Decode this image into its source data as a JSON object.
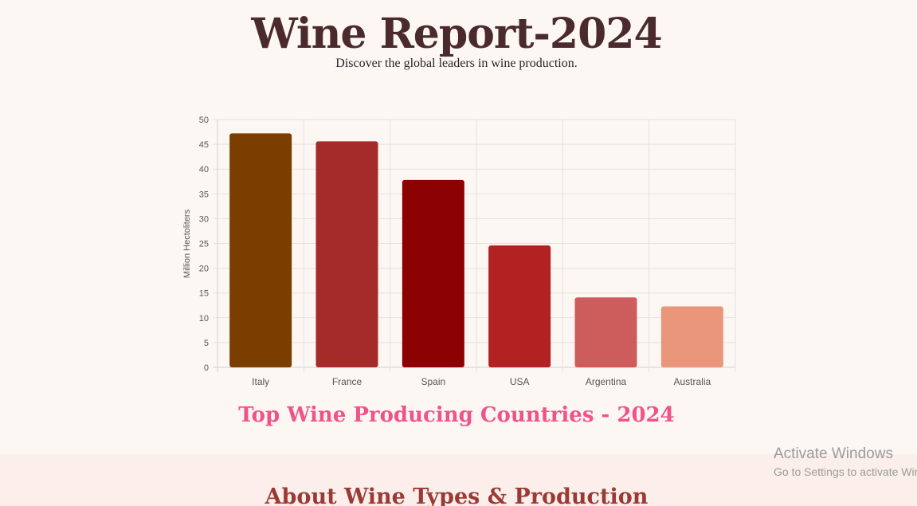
{
  "header": {
    "title": "Wine Report-2024",
    "subtitle": "Discover the global leaders in wine production."
  },
  "chart_data": {
    "type": "bar",
    "title": "Top Wine Producing Countries - 2024",
    "categories": [
      "Italy",
      "France",
      "Spain",
      "USA",
      "Argentina",
      "Australia"
    ],
    "values": [
      47.2,
      45.6,
      37.8,
      24.6,
      14.1,
      12.3
    ],
    "colors": [
      "#7b3d00",
      "#a52a2a",
      "#8b0000",
      "#b22222",
      "#cd5c5c",
      "#e9967a"
    ],
    "xlabel": "",
    "ylabel": "Million Hectoliters",
    "ylim": [
      0,
      50
    ],
    "yticks": [
      "0",
      "5",
      "10",
      "15",
      "20",
      "25",
      "30",
      "35",
      "40",
      "45",
      "50"
    ],
    "grid": true,
    "legend": "none"
  },
  "about": {
    "heading": "About Wine Types & Production"
  },
  "watermark": {
    "title": "Activate Windows",
    "subtitle": "Go to Settings to activate Windows."
  }
}
